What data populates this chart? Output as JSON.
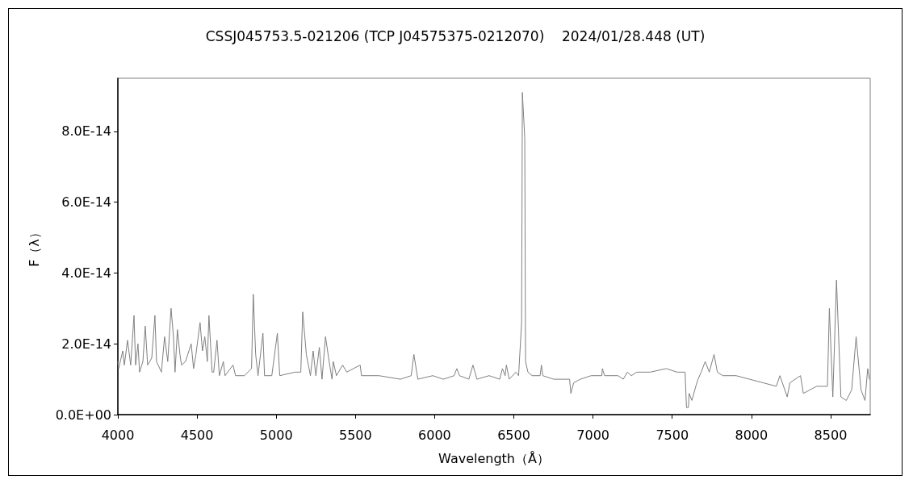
{
  "chart_data": {
    "type": "line",
    "title": "CSSJ045753.5-021206 (TCP J04575375-0212070)    2024/01/28.448 (UT)",
    "xlabel": "Wavelength（Å）",
    "ylabel": "F（λ）",
    "color": "#808080",
    "grid": false,
    "xlim": [
      4000,
      8750
    ],
    "xticks": [
      4000,
      4500,
      5000,
      5500,
      6000,
      6500,
      7000,
      7500,
      8000,
      8500
    ],
    "ylim": [
      0,
      9.5e-14
    ],
    "yticks": [
      {
        "value": 0,
        "label": "0.0E+00"
      },
      {
        "value": 2e-14,
        "label": "2.0E-14"
      },
      {
        "value": 4e-14,
        "label": "4.0E-14"
      },
      {
        "value": 6e-14,
        "label": "6.0E-14"
      },
      {
        "value": 8e-14,
        "label": "8.0E-14"
      }
    ],
    "x": [
      4000,
      4005,
      4031,
      4041,
      4061,
      4081,
      4102,
      4112,
      4127,
      4137,
      4158,
      4173,
      4188,
      4214,
      4234,
      4244,
      4275,
      4295,
      4315,
      4336,
      4351,
      4361,
      4376,
      4392,
      4402,
      4427,
      4463,
      4478,
      4493,
      4519,
      4534,
      4549,
      4565,
      4575,
      4595,
      4605,
      4626,
      4641,
      4666,
      4677,
      4727,
      4743,
      4799,
      4844,
      4855,
      4870,
      4885,
      4916,
      4926,
      4972,
      5007,
      5022,
      5119,
      5155,
      5167,
      5190,
      5216,
      5233,
      5250,
      5272,
      5289,
      5311,
      5334,
      5352,
      5360,
      5380,
      5419,
      5445,
      5530,
      5538,
      5648,
      5784,
      5852,
      5869,
      5894,
      5988,
      6055,
      6123,
      6140,
      6157,
      6216,
      6242,
      6267,
      6344,
      6411,
      6428,
      6445,
      6453,
      6471,
      6513,
      6530,
      6549,
      6554,
      6569,
      6574,
      6589,
      6615,
      6666,
      6674,
      6683,
      6751,
      6852,
      6860,
      6878,
      6920,
      6988,
      7056,
      7059,
      7073,
      7158,
      7191,
      7217,
      7242,
      7276,
      7361,
      7463,
      7530,
      7581,
      7590,
      7602,
      7607,
      7624,
      7649,
      7663,
      7683,
      7708,
      7734,
      7764,
      7785,
      7819,
      7903,
      7988,
      8073,
      8157,
      8180,
      8226,
      8243,
      8310,
      8328,
      8412,
      8480,
      8492,
      8514,
      8537,
      8565,
      8599,
      8633,
      8661,
      8692,
      8717,
      8734,
      8745
    ],
    "values": [
      1.5e-14,
      1.3e-14,
      1.8e-14,
      1.4e-14,
      2.1e-14,
      1.4e-14,
      2.8e-14,
      1.4e-14,
      2e-14,
      1.2e-14,
      1.5e-14,
      2.5e-14,
      1.4e-14,
      1.6e-14,
      2.8e-14,
      1.5e-14,
      1.2e-14,
      2.2e-14,
      1.5e-14,
      3e-14,
      2.2e-14,
      1.2e-14,
      2.4e-14,
      1.7e-14,
      1.4e-14,
      1.5e-14,
      2e-14,
      1.3e-14,
      1.7e-14,
      2.6e-14,
      1.8e-14,
      2.2e-14,
      1.5e-14,
      2.8e-14,
      1.2e-14,
      1.2e-14,
      2.1e-14,
      1.1e-14,
      1.5e-14,
      1.1e-14,
      1.4e-14,
      1.1e-14,
      1.1e-14,
      1.3e-14,
      3.4e-14,
      1.7e-14,
      1.1e-14,
      2.3e-14,
      1.1e-14,
      1.1e-14,
      2.3e-14,
      1.1e-14,
      1.2e-14,
      1.2e-14,
      2.9e-14,
      1.7e-14,
      1.1e-14,
      1.8e-14,
      1.1e-14,
      1.9e-14,
      1e-14,
      2.2e-14,
      1.5e-14,
      1e-14,
      1.5e-14,
      1.1e-14,
      1.4e-14,
      1.2e-14,
      1.4e-14,
      1.1e-14,
      1.1e-14,
      1e-14,
      1.1e-14,
      1.7e-14,
      1e-14,
      1.1e-14,
      1e-14,
      1.1e-14,
      1.3e-14,
      1.1e-14,
      1e-14,
      1.4e-14,
      1e-14,
      1.1e-14,
      1e-14,
      1.3e-14,
      1.1e-14,
      1.4e-14,
      1e-14,
      1.2e-14,
      1.1e-14,
      2.6e-14,
      9.1e-14,
      7.8e-14,
      1.5e-14,
      1.2e-14,
      1.1e-14,
      1.1e-14,
      1.4e-14,
      1.1e-14,
      1e-14,
      1e-14,
      6e-15,
      9e-15,
      1e-14,
      1.1e-14,
      1.1e-14,
      1.3e-14,
      1.1e-14,
      1.1e-14,
      1e-14,
      1.2e-14,
      1.1e-14,
      1.2e-14,
      1.2e-14,
      1.3e-14,
      1.2e-14,
      1.2e-14,
      2e-15,
      2e-15,
      6e-15,
      4e-15,
      8e-15,
      1e-14,
      1.2e-14,
      1.5e-14,
      1.2e-14,
      1.7e-14,
      1.2e-14,
      1.1e-14,
      1.1e-14,
      1e-14,
      9e-15,
      8e-15,
      1.1e-14,
      5e-15,
      9e-15,
      1.1e-14,
      6e-15,
      8e-15,
      8e-15,
      3e-14,
      5e-15,
      3.8e-14,
      5e-15,
      4e-15,
      7e-15,
      2.2e-14,
      7e-15,
      4e-15,
      1.3e-14,
      1e-14
    ]
  }
}
